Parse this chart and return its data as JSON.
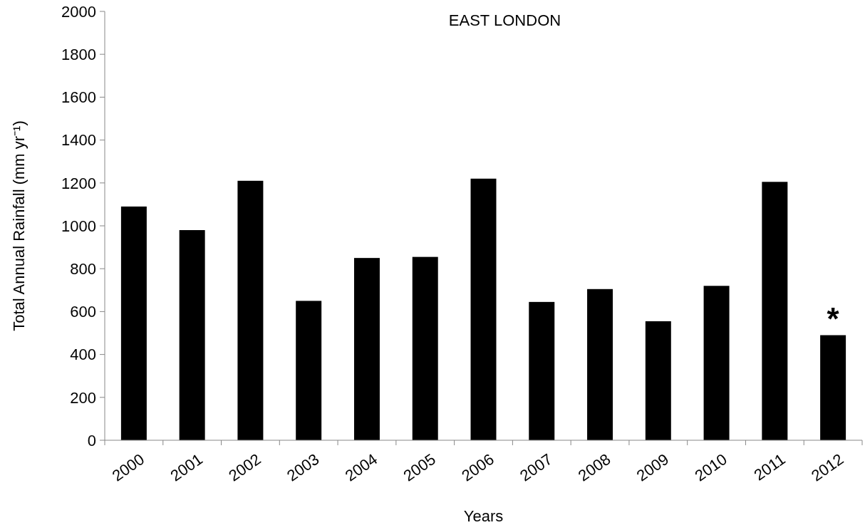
{
  "chart_data": {
    "type": "bar",
    "title": "EAST LONDON",
    "xlabel": "Years",
    "ylabel": "Total Annual Rainfall (mm yr⁻¹)",
    "categories": [
      "2000",
      "2001",
      "2002",
      "2003",
      "2004",
      "2005",
      "2006",
      "2007",
      "2008",
      "2009",
      "2010",
      "2011",
      "2012"
    ],
    "values": [
      1090,
      980,
      1210,
      650,
      850,
      855,
      1220,
      645,
      705,
      555,
      720,
      1205,
      490
    ],
    "color": "#000000",
    "ylim": [
      0,
      2000
    ],
    "yticks": [
      0,
      200,
      400,
      600,
      800,
      1000,
      1200,
      1400,
      1600,
      1800,
      2000
    ],
    "grid": false,
    "annotations": [
      {
        "text": "*",
        "x": "2012",
        "y": 490
      }
    ]
  }
}
